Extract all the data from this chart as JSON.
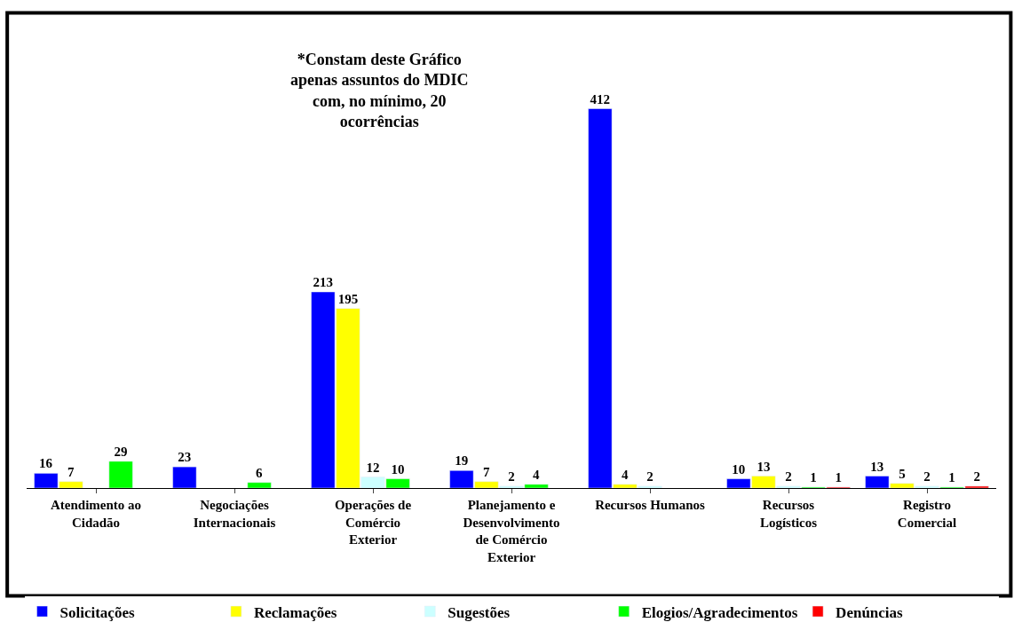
{
  "chart_data": {
    "type": "bar",
    "categories": [
      "Atendimento ao Cidadão",
      "Negociações Internacionais",
      "Operações de Comércio Exterior",
      "Planejamento e Desenvolvimento de Comércio Exterior",
      "Recursos Humanos",
      "Recursos Logísticos",
      "Registro Comercial"
    ],
    "series": [
      {
        "name": "Solicitações",
        "color": "#0000ff",
        "values": [
          16,
          23,
          213,
          19,
          412,
          10,
          13
        ]
      },
      {
        "name": "Reclamações",
        "color": "#ffff00",
        "values": [
          7,
          null,
          195,
          7,
          4,
          13,
          5
        ]
      },
      {
        "name": "Sugestões",
        "color": "#ccffff",
        "values": [
          null,
          null,
          12,
          2,
          2,
          2,
          2
        ]
      },
      {
        "name": "Elogios/Agradecimentos",
        "color": "#00ff00",
        "values": [
          29,
          6,
          10,
          4,
          null,
          1,
          1
        ]
      },
      {
        "name": "Denúncias",
        "color": "#ff0000",
        "values": [
          null,
          null,
          null,
          null,
          null,
          1,
          2
        ]
      }
    ],
    "tick_labels": "x",
    "data_labels": true,
    "legend": "bottom",
    "annotations": [
      "*Constam deste Gráfico apenas assuntos do MDIC com, no mínimo, 20 ocorrências"
    ]
  }
}
